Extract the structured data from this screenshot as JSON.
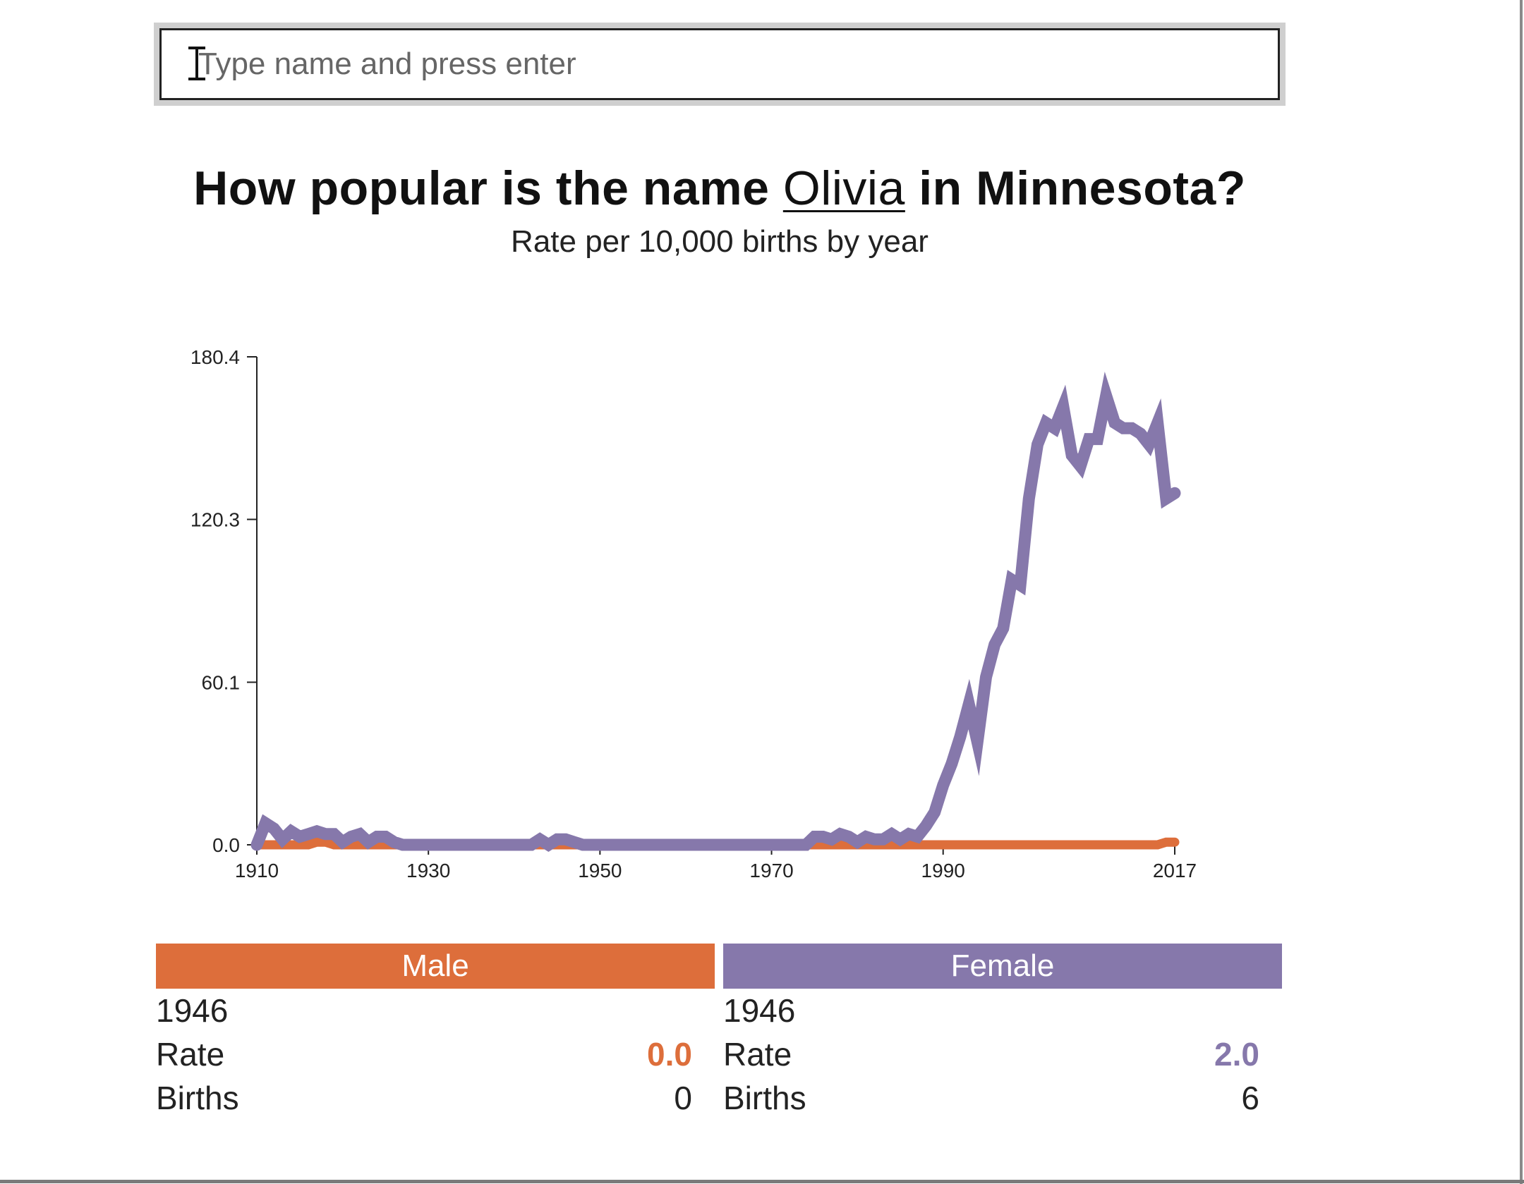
{
  "search": {
    "placeholder": "Type name and press enter"
  },
  "heading": {
    "prefix": "How popular is the name ",
    "name": "Olivia",
    "suffix": " in Minnesota?",
    "subtitle": "Rate per 10,000 births by year"
  },
  "colors": {
    "male": "#dd6e3b",
    "female": "#8678ab"
  },
  "chart_data": {
    "type": "line",
    "title": "How popular is the name Olivia in Minnesota?",
    "subtitle": "Rate per 10,000 births by year",
    "xlabel": "",
    "ylabel": "",
    "x_ticks": [
      "1910",
      "1930",
      "1950",
      "1970",
      "1990",
      "2017"
    ],
    "y_ticks": [
      "0.0",
      "60.1",
      "120.3",
      "180.4"
    ],
    "xlim": [
      1910,
      2017
    ],
    "ylim": [
      0,
      180.4
    ],
    "grid": false,
    "series": [
      {
        "name": "Female",
        "color": "#8678ab",
        "x": [
          1910,
          1911,
          1912,
          1913,
          1914,
          1915,
          1916,
          1917,
          1918,
          1919,
          1920,
          1921,
          1922,
          1923,
          1924,
          1925,
          1926,
          1927,
          1928,
          1929,
          1930,
          1935,
          1940,
          1942,
          1943,
          1944,
          1945,
          1946,
          1947,
          1948,
          1950,
          1960,
          1970,
          1974,
          1975,
          1976,
          1977,
          1978,
          1979,
          1980,
          1981,
          1982,
          1983,
          1984,
          1985,
          1986,
          1987,
          1988,
          1989,
          1990,
          1991,
          1992,
          1993,
          1994,
          1995,
          1996,
          1997,
          1998,
          1999,
          2000,
          2001,
          2002,
          2003,
          2004,
          2005,
          2006,
          2007,
          2008,
          2009,
          2010,
          2011,
          2012,
          2013,
          2014,
          2015,
          2016,
          2017
        ],
        "values": [
          0,
          8,
          6,
          2,
          5,
          3,
          4,
          5,
          4,
          4,
          1,
          3,
          4,
          1,
          3,
          3,
          1,
          0,
          0,
          0,
          0,
          0,
          0,
          0,
          2,
          0,
          2,
          2,
          1,
          0,
          0,
          0,
          0,
          0,
          3,
          3,
          2,
          4,
          3,
          1,
          3,
          2,
          2,
          4,
          2,
          4,
          3,
          7,
          12,
          22,
          30,
          40,
          52,
          38,
          62,
          74,
          80,
          98,
          96,
          128,
          148,
          156,
          154,
          162,
          144,
          140,
          150,
          150,
          166,
          156,
          154,
          154,
          152,
          148,
          156,
          128,
          130
        ]
      },
      {
        "name": "Male",
        "color": "#dd6e3b",
        "x": [
          1910,
          1911,
          1912,
          1913,
          1914,
          1915,
          1916,
          1917,
          1918,
          1919,
          1920,
          1930,
          1950,
          1970,
          1980,
          1990,
          2000,
          2010,
          2014,
          2015,
          2016,
          2017
        ],
        "values": [
          0,
          0,
          0,
          0,
          0,
          0,
          0,
          1,
          1,
          0,
          0,
          0,
          0,
          0,
          0,
          0,
          0,
          0,
          0,
          0,
          1,
          1
        ]
      }
    ]
  },
  "panels": {
    "male": {
      "label": "Male",
      "year": "1946",
      "rate_label": "Rate",
      "rate": "0.0",
      "births_label": "Births",
      "births": "0"
    },
    "female": {
      "label": "Female",
      "year": "1946",
      "rate_label": "Rate",
      "rate": "2.0",
      "births_label": "Births",
      "births": "6"
    }
  }
}
